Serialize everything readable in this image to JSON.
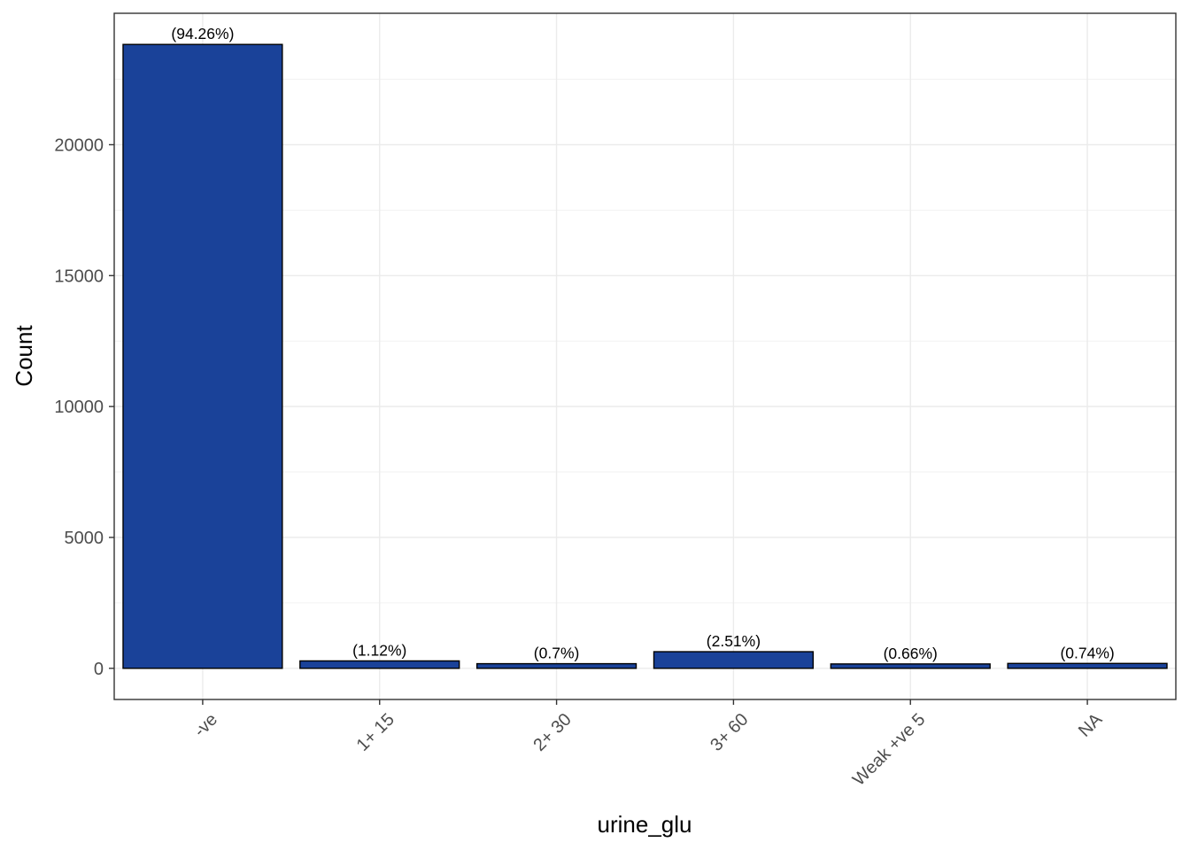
{
  "chart_data": {
    "type": "bar",
    "xlabel": "urine_glu",
    "ylabel": "Count",
    "categories": [
      "-ve",
      "1+ 15",
      "2+ 30",
      "3+ 60",
      "Weak +ve 5",
      "NA"
    ],
    "values": [
      23830,
      283,
      177,
      635,
      167,
      187
    ],
    "labels": [
      "(94.26%)",
      "(1.12%)",
      "(0.7%)",
      "(2.51%)",
      "(0.66%)",
      "(0.74%)"
    ],
    "yticks": [
      0,
      5000,
      10000,
      15000,
      20000
    ],
    "ytick_labels": [
      "0",
      "5000",
      "10000",
      "15000",
      "20000"
    ],
    "ylim": [
      -1190,
      25020
    ],
    "grid": true,
    "bar_color": "#1A4299",
    "bar_edge_color": "#000000"
  }
}
